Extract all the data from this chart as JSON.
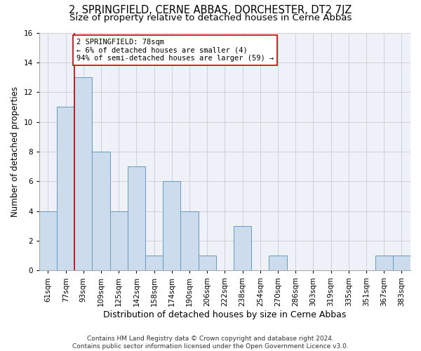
{
  "title": "2, SPRINGFIELD, CERNE ABBAS, DORCHESTER, DT2 7JZ",
  "subtitle": "Size of property relative to detached houses in Cerne Abbas",
  "xlabel": "Distribution of detached houses by size in Cerne Abbas",
  "ylabel": "Number of detached properties",
  "categories": [
    "61sqm",
    "77sqm",
    "93sqm",
    "109sqm",
    "125sqm",
    "142sqm",
    "158sqm",
    "174sqm",
    "190sqm",
    "206sqm",
    "222sqm",
    "238sqm",
    "254sqm",
    "270sqm",
    "286sqm",
    "303sqm",
    "319sqm",
    "335sqm",
    "351sqm",
    "367sqm",
    "383sqm"
  ],
  "values": [
    4,
    11,
    13,
    8,
    4,
    7,
    1,
    6,
    4,
    1,
    0,
    3,
    0,
    1,
    0,
    0,
    0,
    0,
    0,
    1,
    1
  ],
  "bar_color": "#ccdcec",
  "bar_edge_color": "#6699bb",
  "annotation_box_text": "2 SPRINGFIELD: 78sqm\n← 6% of detached houses are smaller (4)\n94% of semi-detached houses are larger (59) →",
  "annotation_box_color": "white",
  "annotation_box_edge_color": "#cc0000",
  "vline_color": "#cc0000",
  "vline_x_index": 1.5,
  "ylim": [
    0,
    16
  ],
  "yticks": [
    0,
    2,
    4,
    6,
    8,
    10,
    12,
    14,
    16
  ],
  "grid_color": "#cccccc",
  "background_color": "#eef2f8",
  "footer_text": "Contains HM Land Registry data © Crown copyright and database right 2024.\nContains public sector information licensed under the Open Government Licence v3.0.",
  "title_fontsize": 10.5,
  "subtitle_fontsize": 9.5,
  "xlabel_fontsize": 9,
  "ylabel_fontsize": 8.5,
  "tick_fontsize": 7.5,
  "annotation_fontsize": 7.5,
  "footer_fontsize": 6.5
}
